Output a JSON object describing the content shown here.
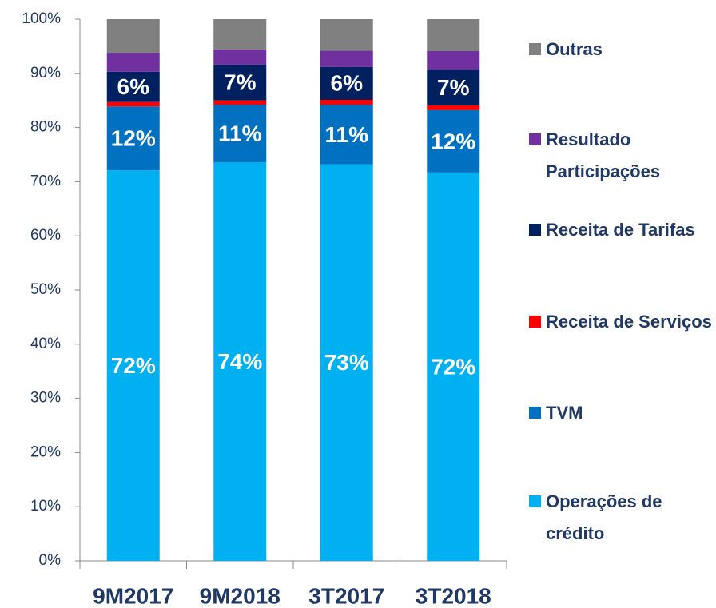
{
  "chart_data": {
    "type": "stacked-bar",
    "categories": [
      "9M2017",
      "9M2018",
      "3T2017",
      "3T2018"
    ],
    "series": [
      {
        "name": "Operações de crédito",
        "color": "#00b0f0",
        "values": [
          72.1,
          73.6,
          73.2,
          71.7
        ],
        "value_labels": [
          "72%",
          "74%",
          "73%",
          "72%"
        ]
      },
      {
        "name": "TVM",
        "color": "#0070c0",
        "values": [
          11.8,
          10.6,
          11.0,
          11.5
        ],
        "value_labels": [
          "12%",
          "11%",
          "11%",
          "12%"
        ]
      },
      {
        "name": "Receita de Serviços",
        "color": "#ff0000",
        "values": [
          0.8,
          0.8,
          0.9,
          0.9
        ]
      },
      {
        "name": "Receita de Tarifas",
        "color": "#002060",
        "values": [
          5.6,
          6.6,
          6.1,
          6.6
        ],
        "value_labels": [
          "6%",
          "7%",
          "6%",
          "7%"
        ]
      },
      {
        "name": "Resultado Participações",
        "color": "#7030a0",
        "values": [
          3.5,
          2.8,
          3.0,
          3.4
        ]
      },
      {
        "name": "Outras",
        "color": "#808080",
        "values": [
          6.2,
          5.6,
          5.8,
          5.9
        ]
      }
    ],
    "ylim": [
      0,
      100
    ],
    "yticks": [
      {
        "value": 0,
        "label": "0%"
      },
      {
        "value": 10,
        "label": "10%"
      },
      {
        "value": 20,
        "label": "20%"
      },
      {
        "value": 30,
        "label": "30%"
      },
      {
        "value": 40,
        "label": "40%"
      },
      {
        "value": 50,
        "label": "50%"
      },
      {
        "value": 60,
        "label": "60%"
      },
      {
        "value": 70,
        "label": "70%"
      },
      {
        "value": 80,
        "label": "80%"
      },
      {
        "value": 90,
        "label": "90%"
      },
      {
        "value": 100,
        "label": "100%"
      }
    ],
    "legend": "right"
  }
}
